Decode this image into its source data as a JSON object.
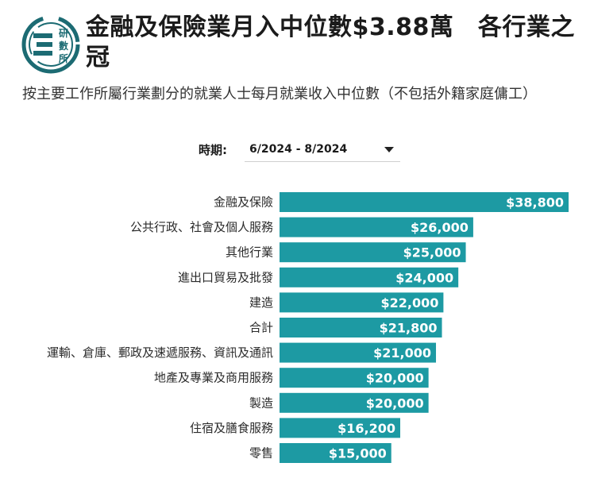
{
  "logo": {
    "text": "研數所"
  },
  "header": {
    "title": "金融及保險業月入中位數$3.88萬　各行業之冠",
    "subtitle": "按主要工作所屬行業劃分的就業人士每月就業收入中位數（不包括外籍家庭傭工）"
  },
  "filter": {
    "label": "時期:",
    "selected": "6/2024 - 8/2024"
  },
  "colors": {
    "bar": "#1d9aa3",
    "logo": "#1c6b73"
  },
  "chart_data": {
    "type": "bar",
    "orientation": "horizontal",
    "categories": [
      "金融及保險",
      "公共行政、社會及個人服務",
      "其他行業",
      "進出口貿易及批發",
      "建造",
      "合計",
      "運輸、倉庫、郵政及速遞服務、資訊及通訊",
      "地產及專業及商用服務",
      "製造",
      "住宿及膳食服務",
      "零售"
    ],
    "values": [
      38800,
      26000,
      25000,
      24000,
      22000,
      21800,
      21000,
      20000,
      20000,
      16200,
      15000
    ],
    "data_labels": [
      "$38,800",
      "$26,000",
      "$25,000",
      "$24,000",
      "$22,000",
      "$21,800",
      "$21,000",
      "$20,000",
      "$20,000",
      "$16,200",
      "$15,000"
    ],
    "xlim": [
      0,
      38800
    ],
    "grid": false,
    "legend": "none"
  }
}
